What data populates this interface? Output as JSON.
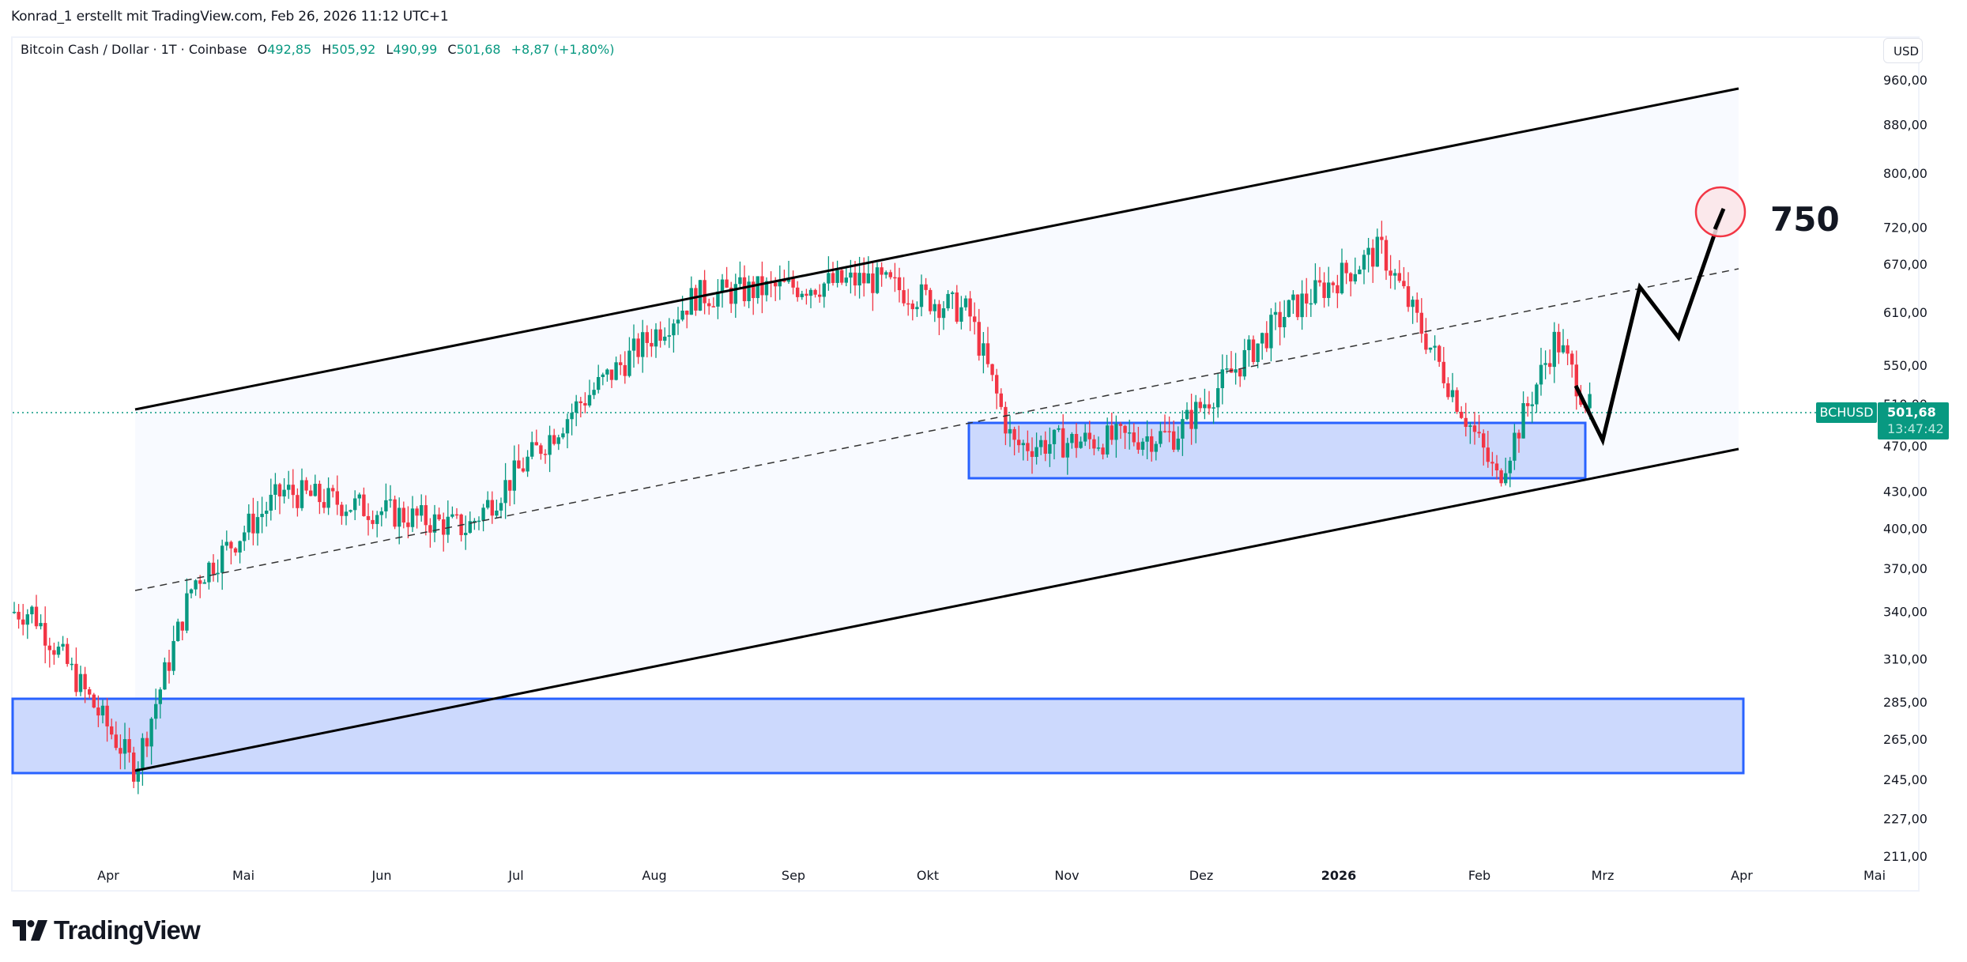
{
  "header": {
    "credit": "Konrad_1 erstellt mit TradingView.com, Feb 26, 2026 11:12 UTC+1"
  },
  "legend": {
    "symbol_name": "Bitcoin Cash / Dollar · 1T · Coinbase",
    "open_label": "O",
    "open": "492,85",
    "high_label": "H",
    "high": "505,92",
    "low_label": "L",
    "low": "490,99",
    "close_label": "C",
    "close": "501,68",
    "change": "+8,87 (+1,80%)"
  },
  "currency_button": "USD",
  "price_tag": {
    "symbol": "BCHUSD",
    "price": "501,68",
    "countdown": "13:47:42"
  },
  "annotation": {
    "target_label": "750"
  },
  "brand": {
    "logo_text": "TradingView"
  },
  "colors": {
    "up": "#089981",
    "down": "#f23645",
    "zone_fill": "#ccd9fd",
    "zone_border": "#2962ff",
    "channel_fill": "#f8faff",
    "target_circle_fill": "#fce4e8",
    "target_circle_border": "#f23645"
  },
  "chart_data": {
    "type": "candlestick",
    "title": "Bitcoin Cash / Dollar · 1T · Coinbase",
    "symbol": "BCHUSD",
    "timeframe": "1T",
    "xlabel": "",
    "ylabel": "USD",
    "y_scale": "log",
    "ylim": [
      205,
      1000
    ],
    "y_ticks": [
      "960,00",
      "880,00",
      "800,00",
      "720,00",
      "670,00",
      "610,00",
      "550,00",
      "510,00",
      "470,00",
      "430,00",
      "400,00",
      "370,00",
      "340,00",
      "310,00",
      "285,00",
      "265,00",
      "245,00",
      "227,00",
      "211,00"
    ],
    "x_ticks": [
      "Apr",
      "Mai",
      "Jun",
      "Jul",
      "Aug",
      "Sep",
      "Okt",
      "Nov",
      "Dez",
      "2026",
      "Feb",
      "Mrz",
      "Apr",
      "Mai"
    ],
    "last_price": 501.68,
    "ohlc_last": {
      "open": 492.85,
      "high": 505.92,
      "low": 490.99,
      "close": 501.68,
      "change": 8.87,
      "change_pct": 1.8
    },
    "approx_path": [
      {
        "date": "2025-03",
        "price": 340
      },
      {
        "date": "2025-04-07",
        "price": 250
      },
      {
        "date": "2025-04-20",
        "price": 360
      },
      {
        "date": "2025-05-10",
        "price": 430
      },
      {
        "date": "2025-06-20",
        "price": 400
      },
      {
        "date": "2025-07-15",
        "price": 510
      },
      {
        "date": "2025-08-10",
        "price": 630
      },
      {
        "date": "2025-09-18",
        "price": 650
      },
      {
        "date": "2025-10-10",
        "price": 610
      },
      {
        "date": "2025-10-20",
        "price": 470
      },
      {
        "date": "2025-11-25",
        "price": 480
      },
      {
        "date": "2025-12-20",
        "price": 610
      },
      {
        "date": "2026-01-10",
        "price": 690
      },
      {
        "date": "2026-02-05",
        "price": 440
      },
      {
        "date": "2026-02-18",
        "price": 580
      },
      {
        "date": "2026-02-26",
        "price": 501.68
      }
    ],
    "drawings": {
      "ascending_channel": {
        "upper": [
          {
            "date": "2025-04-07",
            "price": 505
          },
          {
            "date": "2026-03-31",
            "price": 945
          }
        ],
        "lower": [
          {
            "date": "2025-04-07",
            "price": 245
          },
          {
            "date": "2026-03-31",
            "price": 465
          }
        ],
        "mid_dashed": [
          {
            "date": "2025-04-07",
            "price": 352
          },
          {
            "date": "2026-03-31",
            "price": 660
          }
        ]
      },
      "support_zones": [
        {
          "from": "2025-03",
          "to": "2026-02-26",
          "top": 285,
          "bottom": 245
        },
        {
          "from": "2025-10-10",
          "to": "2026-02-26",
          "top": 490,
          "bottom": 440
        }
      ],
      "projection_path": [
        {
          "date": "2026-02-26",
          "price": 530
        },
        {
          "date": "2026-03-02",
          "price": 470
        },
        {
          "date": "2026-03-10",
          "price": 635
        },
        {
          "date": "2026-03-20",
          "price": 575
        },
        {
          "date": "2026-03-31",
          "price": 745
        }
      ],
      "target": {
        "price": 750,
        "label": "750"
      }
    }
  }
}
